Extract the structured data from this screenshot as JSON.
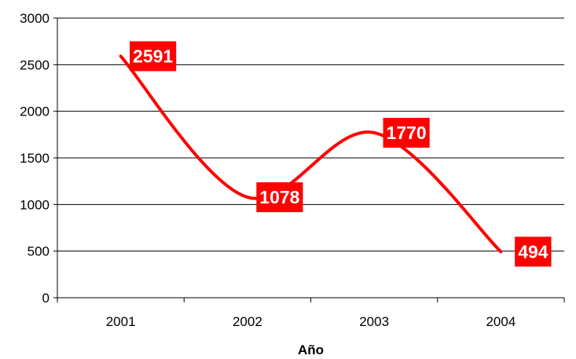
{
  "chart_data": {
    "type": "line",
    "categories": [
      "2001",
      "2002",
      "2003",
      "2004"
    ],
    "series": [
      {
        "values": [
          2591,
          1078,
          1770,
          494
        ]
      }
    ],
    "title": "",
    "xlabel": "Año",
    "ylabel": "",
    "ylim": [
      0,
      3000
    ],
    "y_ticks": [
      "0",
      "500",
      "1000",
      "1500",
      "2000",
      "2500",
      "3000"
    ],
    "grid": true,
    "smooth": true,
    "legend": "none",
    "data_labels": [
      "2591",
      "1078",
      "1770",
      "494"
    ],
    "line_color": "#ff0000",
    "label_background": "#ff0000",
    "label_text_color": "#ffffff"
  }
}
